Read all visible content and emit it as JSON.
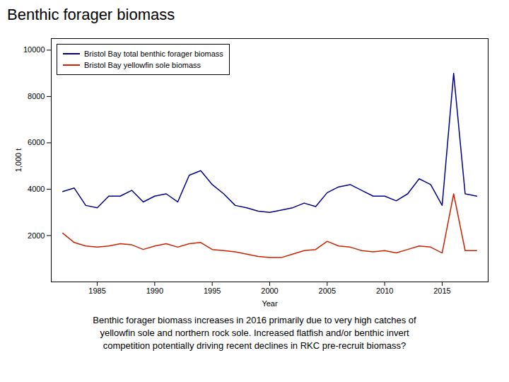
{
  "chart_data": {
    "type": "line",
    "title": "Benthic forager biomass",
    "subtitle": "Benthic forager biomass increases in 2016 primarily due to very high catches of\nyellowfin sole and northern rock sole. Increased flatfish and/or benthic invert\ncompetition potentially driving recent declines in RKC pre-recruit biomass?",
    "xlabel": "Year",
    "ylabel": "1,000 t",
    "x": [
      1982,
      1983,
      1984,
      1985,
      1986,
      1987,
      1988,
      1989,
      1990,
      1991,
      1992,
      1993,
      1994,
      1995,
      1996,
      1997,
      1998,
      1999,
      2000,
      2001,
      2002,
      2003,
      2004,
      2005,
      2006,
      2007,
      2008,
      2009,
      2010,
      2011,
      2012,
      2013,
      2014,
      2015,
      2016,
      2017,
      2018
    ],
    "series": [
      {
        "name": "Bristol Bay total benthic forager biomass",
        "color": "#00008b",
        "values": [
          3900,
          4050,
          3300,
          3200,
          3700,
          3700,
          3950,
          3450,
          3700,
          3800,
          3450,
          4600,
          4800,
          4200,
          3800,
          3300,
          3200,
          3050,
          3000,
          3100,
          3200,
          3400,
          3250,
          3850,
          4100,
          4200,
          3950,
          3700,
          3700,
          3500,
          3800,
          4450,
          4200,
          3300,
          9000,
          3800,
          3700
        ]
      },
      {
        "name": "Bristol Bay yellowfin sole biomass",
        "color": "#cc2200",
        "values": [
          2100,
          1700,
          1550,
          1500,
          1550,
          1650,
          1600,
          1400,
          1550,
          1650,
          1500,
          1650,
          1700,
          1400,
          1350,
          1300,
          1200,
          1100,
          1050,
          1050,
          1200,
          1350,
          1400,
          1750,
          1550,
          1500,
          1350,
          1300,
          1350,
          1250,
          1400,
          1550,
          1500,
          1250,
          3800,
          1350,
          1350
        ]
      }
    ],
    "xlim": [
      1981,
      2019
    ],
    "xticks": [
      1985,
      1990,
      1995,
      2000,
      2005,
      2010,
      2015
    ],
    "ylim": [
      0,
      10500
    ],
    "yticks": [
      2000,
      4000,
      6000,
      8000,
      10000
    ],
    "grid": false,
    "legend": "upper left"
  }
}
